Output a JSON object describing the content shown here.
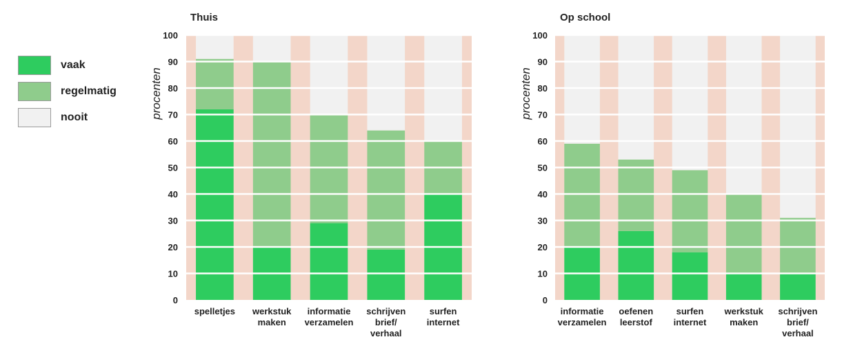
{
  "colors": {
    "vaak": "#2ecc5f",
    "regelmatig": "#8fcc8c",
    "nooit": "#f1f1f1",
    "band": "#f3d6c9",
    "grid": "#ffffff",
    "text": "#222222"
  },
  "legend": [
    {
      "key": "vaak",
      "label": "vaak"
    },
    {
      "key": "regelmatig",
      "label": "regelmatig"
    },
    {
      "key": "nooit",
      "label": "nooit"
    }
  ],
  "chart_data": [
    {
      "type": "bar",
      "title": "Thuis",
      "ylabel": "procenten",
      "ylim": [
        0,
        100
      ],
      "yticks": [
        "0",
        "10",
        "20",
        "30",
        "40",
        "50",
        "60",
        "70",
        "80",
        "90",
        "100"
      ],
      "categories": [
        [
          "spelletjes"
        ],
        [
          "werkstuk",
          "maken"
        ],
        [
          "informatie",
          "verzamelen"
        ],
        [
          "schrijven",
          "brief/",
          "verhaal"
        ],
        [
          "surfen",
          "internet"
        ]
      ],
      "series": [
        {
          "name": "vaak",
          "values": [
            72,
            20,
            29,
            19,
            40
          ]
        },
        {
          "name": "regelmatig",
          "values": [
            19,
            70,
            41,
            45,
            20
          ]
        },
        {
          "name": "nooit",
          "values": [
            9,
            10,
            30,
            36,
            40
          ]
        }
      ]
    },
    {
      "type": "bar",
      "title": "Op school",
      "ylabel": "procenten",
      "ylim": [
        0,
        100
      ],
      "yticks": [
        "0",
        "10",
        "20",
        "30",
        "40",
        "50",
        "60",
        "70",
        "80",
        "90",
        "100"
      ],
      "categories": [
        [
          "informatie",
          "verzamelen"
        ],
        [
          "oefenen",
          "leerstof"
        ],
        [
          "surfen",
          "internet"
        ],
        [
          "werkstuk",
          "maken"
        ],
        [
          "schrijven",
          "brief/",
          "verhaal"
        ]
      ],
      "series": [
        {
          "name": "vaak",
          "values": [
            20,
            26,
            18,
            10,
            10
          ]
        },
        {
          "name": "regelmatig",
          "values": [
            39,
            27,
            31,
            30,
            21
          ]
        },
        {
          "name": "nooit",
          "values": [
            41,
            47,
            51,
            60,
            69
          ]
        }
      ]
    }
  ]
}
